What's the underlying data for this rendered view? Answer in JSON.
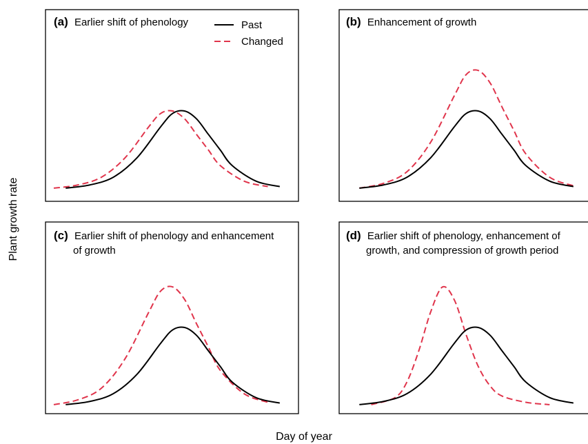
{
  "figure": {
    "xlabel": "Day of year",
    "ylabel": "Plant growth rate"
  },
  "legend": {
    "past": "Past",
    "changed": "Changed"
  },
  "colors": {
    "past": "#000000",
    "changed": "#e0344b"
  },
  "panels": [
    {
      "letter": "(a)",
      "title_lines": [
        "Earlier shift of phenology"
      ]
    },
    {
      "letter": "(b)",
      "title_lines": [
        "Enhancement of growth"
      ]
    },
    {
      "letter": "(c)",
      "title_lines": [
        "Earlier shift of phenology and enhancement",
        "of growth"
      ]
    },
    {
      "letter": "(d)",
      "title_lines": [
        "Earlier shift of phenology, enhancement of",
        "growth, and compression of growth period"
      ]
    }
  ],
  "chart_data": [
    {
      "type": "line",
      "title": "Earlier shift of phenology",
      "xlabel": "Day of year",
      "ylabel": "Plant growth rate",
      "xlim": [
        0,
        100
      ],
      "ylim": [
        0,
        1.6
      ],
      "grid": false,
      "legend_position": "top-right",
      "series": [
        {
          "name": "Past",
          "style": "solid",
          "color": "#000000",
          "x": [
            5,
            15,
            25,
            35,
            45,
            50,
            55,
            60,
            65,
            70,
            75,
            85,
            95
          ],
          "y": [
            0.01,
            0.05,
            0.15,
            0.4,
            0.8,
            0.97,
            1.0,
            0.9,
            0.7,
            0.5,
            0.3,
            0.1,
            0.03
          ]
        },
        {
          "name": "Changed",
          "style": "dashed",
          "color": "#e0344b",
          "x": [
            0,
            10,
            20,
            30,
            40,
            45,
            50,
            55,
            60,
            65,
            70,
            80,
            90
          ],
          "y": [
            0.01,
            0.05,
            0.15,
            0.4,
            0.8,
            0.97,
            1.0,
            0.9,
            0.7,
            0.5,
            0.3,
            0.1,
            0.03
          ]
        }
      ]
    },
    {
      "type": "line",
      "title": "Enhancement of growth",
      "xlabel": "Day of year",
      "ylabel": "Plant growth rate",
      "xlim": [
        0,
        100
      ],
      "ylim": [
        0,
        1.6
      ],
      "grid": false,
      "series": [
        {
          "name": "Past",
          "style": "solid",
          "color": "#000000",
          "x": [
            5,
            15,
            25,
            35,
            45,
            50,
            55,
            60,
            65,
            70,
            75,
            85,
            95
          ],
          "y": [
            0.01,
            0.05,
            0.15,
            0.4,
            0.8,
            0.97,
            1.0,
            0.9,
            0.7,
            0.5,
            0.3,
            0.1,
            0.03
          ]
        },
        {
          "name": "Changed",
          "style": "dashed",
          "color": "#e0344b",
          "x": [
            5,
            15,
            25,
            35,
            45,
            50,
            55,
            60,
            65,
            70,
            75,
            85,
            95
          ],
          "y": [
            0.01,
            0.07,
            0.22,
            0.6,
            1.2,
            1.47,
            1.52,
            1.36,
            1.05,
            0.75,
            0.45,
            0.15,
            0.04
          ]
        }
      ]
    },
    {
      "type": "line",
      "title": "Earlier shift of phenology and enhancement of growth",
      "xlabel": "Day of year",
      "ylabel": "Plant growth rate",
      "xlim": [
        0,
        100
      ],
      "ylim": [
        0,
        1.6
      ],
      "grid": false,
      "series": [
        {
          "name": "Past",
          "style": "solid",
          "color": "#000000",
          "x": [
            5,
            15,
            25,
            35,
            45,
            50,
            55,
            60,
            65,
            70,
            75,
            85,
            95
          ],
          "y": [
            0.01,
            0.05,
            0.15,
            0.4,
            0.8,
            0.97,
            1.0,
            0.9,
            0.7,
            0.5,
            0.3,
            0.1,
            0.03
          ]
        },
        {
          "name": "Changed",
          "style": "dashed",
          "color": "#e0344b",
          "x": [
            0,
            10,
            20,
            30,
            40,
            45,
            50,
            55,
            60,
            65,
            70,
            80,
            90
          ],
          "y": [
            0.01,
            0.07,
            0.22,
            0.6,
            1.2,
            1.47,
            1.52,
            1.36,
            1.05,
            0.75,
            0.45,
            0.15,
            0.04
          ]
        }
      ]
    },
    {
      "type": "line",
      "title": "Earlier shift of phenology, enhancement of growth, and compression of growth period",
      "xlabel": "Day of year",
      "ylabel": "Plant growth rate",
      "xlim": [
        0,
        100
      ],
      "ylim": [
        0,
        1.6
      ],
      "grid": false,
      "series": [
        {
          "name": "Past",
          "style": "solid",
          "color": "#000000",
          "x": [
            5,
            15,
            25,
            35,
            45,
            50,
            55,
            60,
            65,
            70,
            75,
            85,
            95
          ],
          "y": [
            0.01,
            0.05,
            0.15,
            0.4,
            0.8,
            0.97,
            1.0,
            0.9,
            0.7,
            0.5,
            0.3,
            0.1,
            0.03
          ]
        },
        {
          "name": "Changed",
          "style": "dashed",
          "color": "#e0344b",
          "x": [
            10,
            20,
            25,
            30,
            35,
            40,
            45,
            50,
            55,
            60,
            65,
            75,
            85
          ],
          "y": [
            0.01,
            0.1,
            0.3,
            0.7,
            1.2,
            1.52,
            1.35,
            0.9,
            0.5,
            0.25,
            0.12,
            0.04,
            0.01
          ]
        }
      ]
    }
  ]
}
